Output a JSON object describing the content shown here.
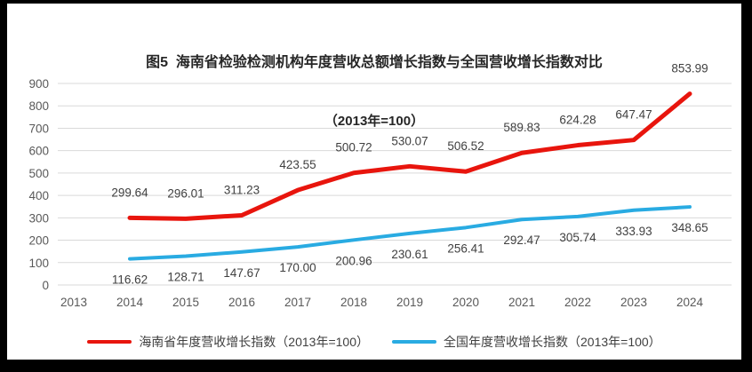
{
  "title": {
    "line1": "图5  海南省检验检测机构年度营收总额增长指数与全国营收增长指数对比",
    "line2": "（2013年=100）"
  },
  "colors": {
    "hainan_line": "#e8150d",
    "national_line": "#29abe2",
    "gridline": "#d9d9d9",
    "axis_text": "#595959",
    "data_label_text": "#404040",
    "frame": "#000000"
  },
  "chart_data": {
    "type": "line",
    "categories": [
      "2013",
      "2014",
      "2015",
      "2016",
      "2017",
      "2018",
      "2019",
      "2020",
      "2021",
      "2022",
      "2023",
      "2024"
    ],
    "series": [
      {
        "name": "海南省年度营收增长指数（2013年=100）",
        "color": "#e8150d",
        "values": [
          null,
          299.64,
          296.01,
          311.23,
          423.55,
          500.72,
          530.07,
          506.52,
          589.83,
          624.28,
          647.47,
          853.99
        ]
      },
      {
        "name": "全国年度营收增长指数（2013年=100）",
        "color": "#29abe2",
        "values": [
          null,
          116.62,
          128.71,
          147.67,
          170.0,
          200.96,
          230.61,
          256.41,
          292.47,
          305.74,
          333.93,
          348.65
        ]
      }
    ],
    "title": "图5  海南省检验检测机构年度营收总额增长指数与全国营收增长指数对比（2013年=100）",
    "xlabel": "",
    "ylabel": "",
    "ylim": [
      0,
      900
    ],
    "ytick_step": 100,
    "yticks": [
      0,
      100,
      200,
      300,
      400,
      500,
      600,
      700,
      800,
      900
    ],
    "grid": true,
    "legend_position": "bottom",
    "value_label_decimals": 2
  }
}
